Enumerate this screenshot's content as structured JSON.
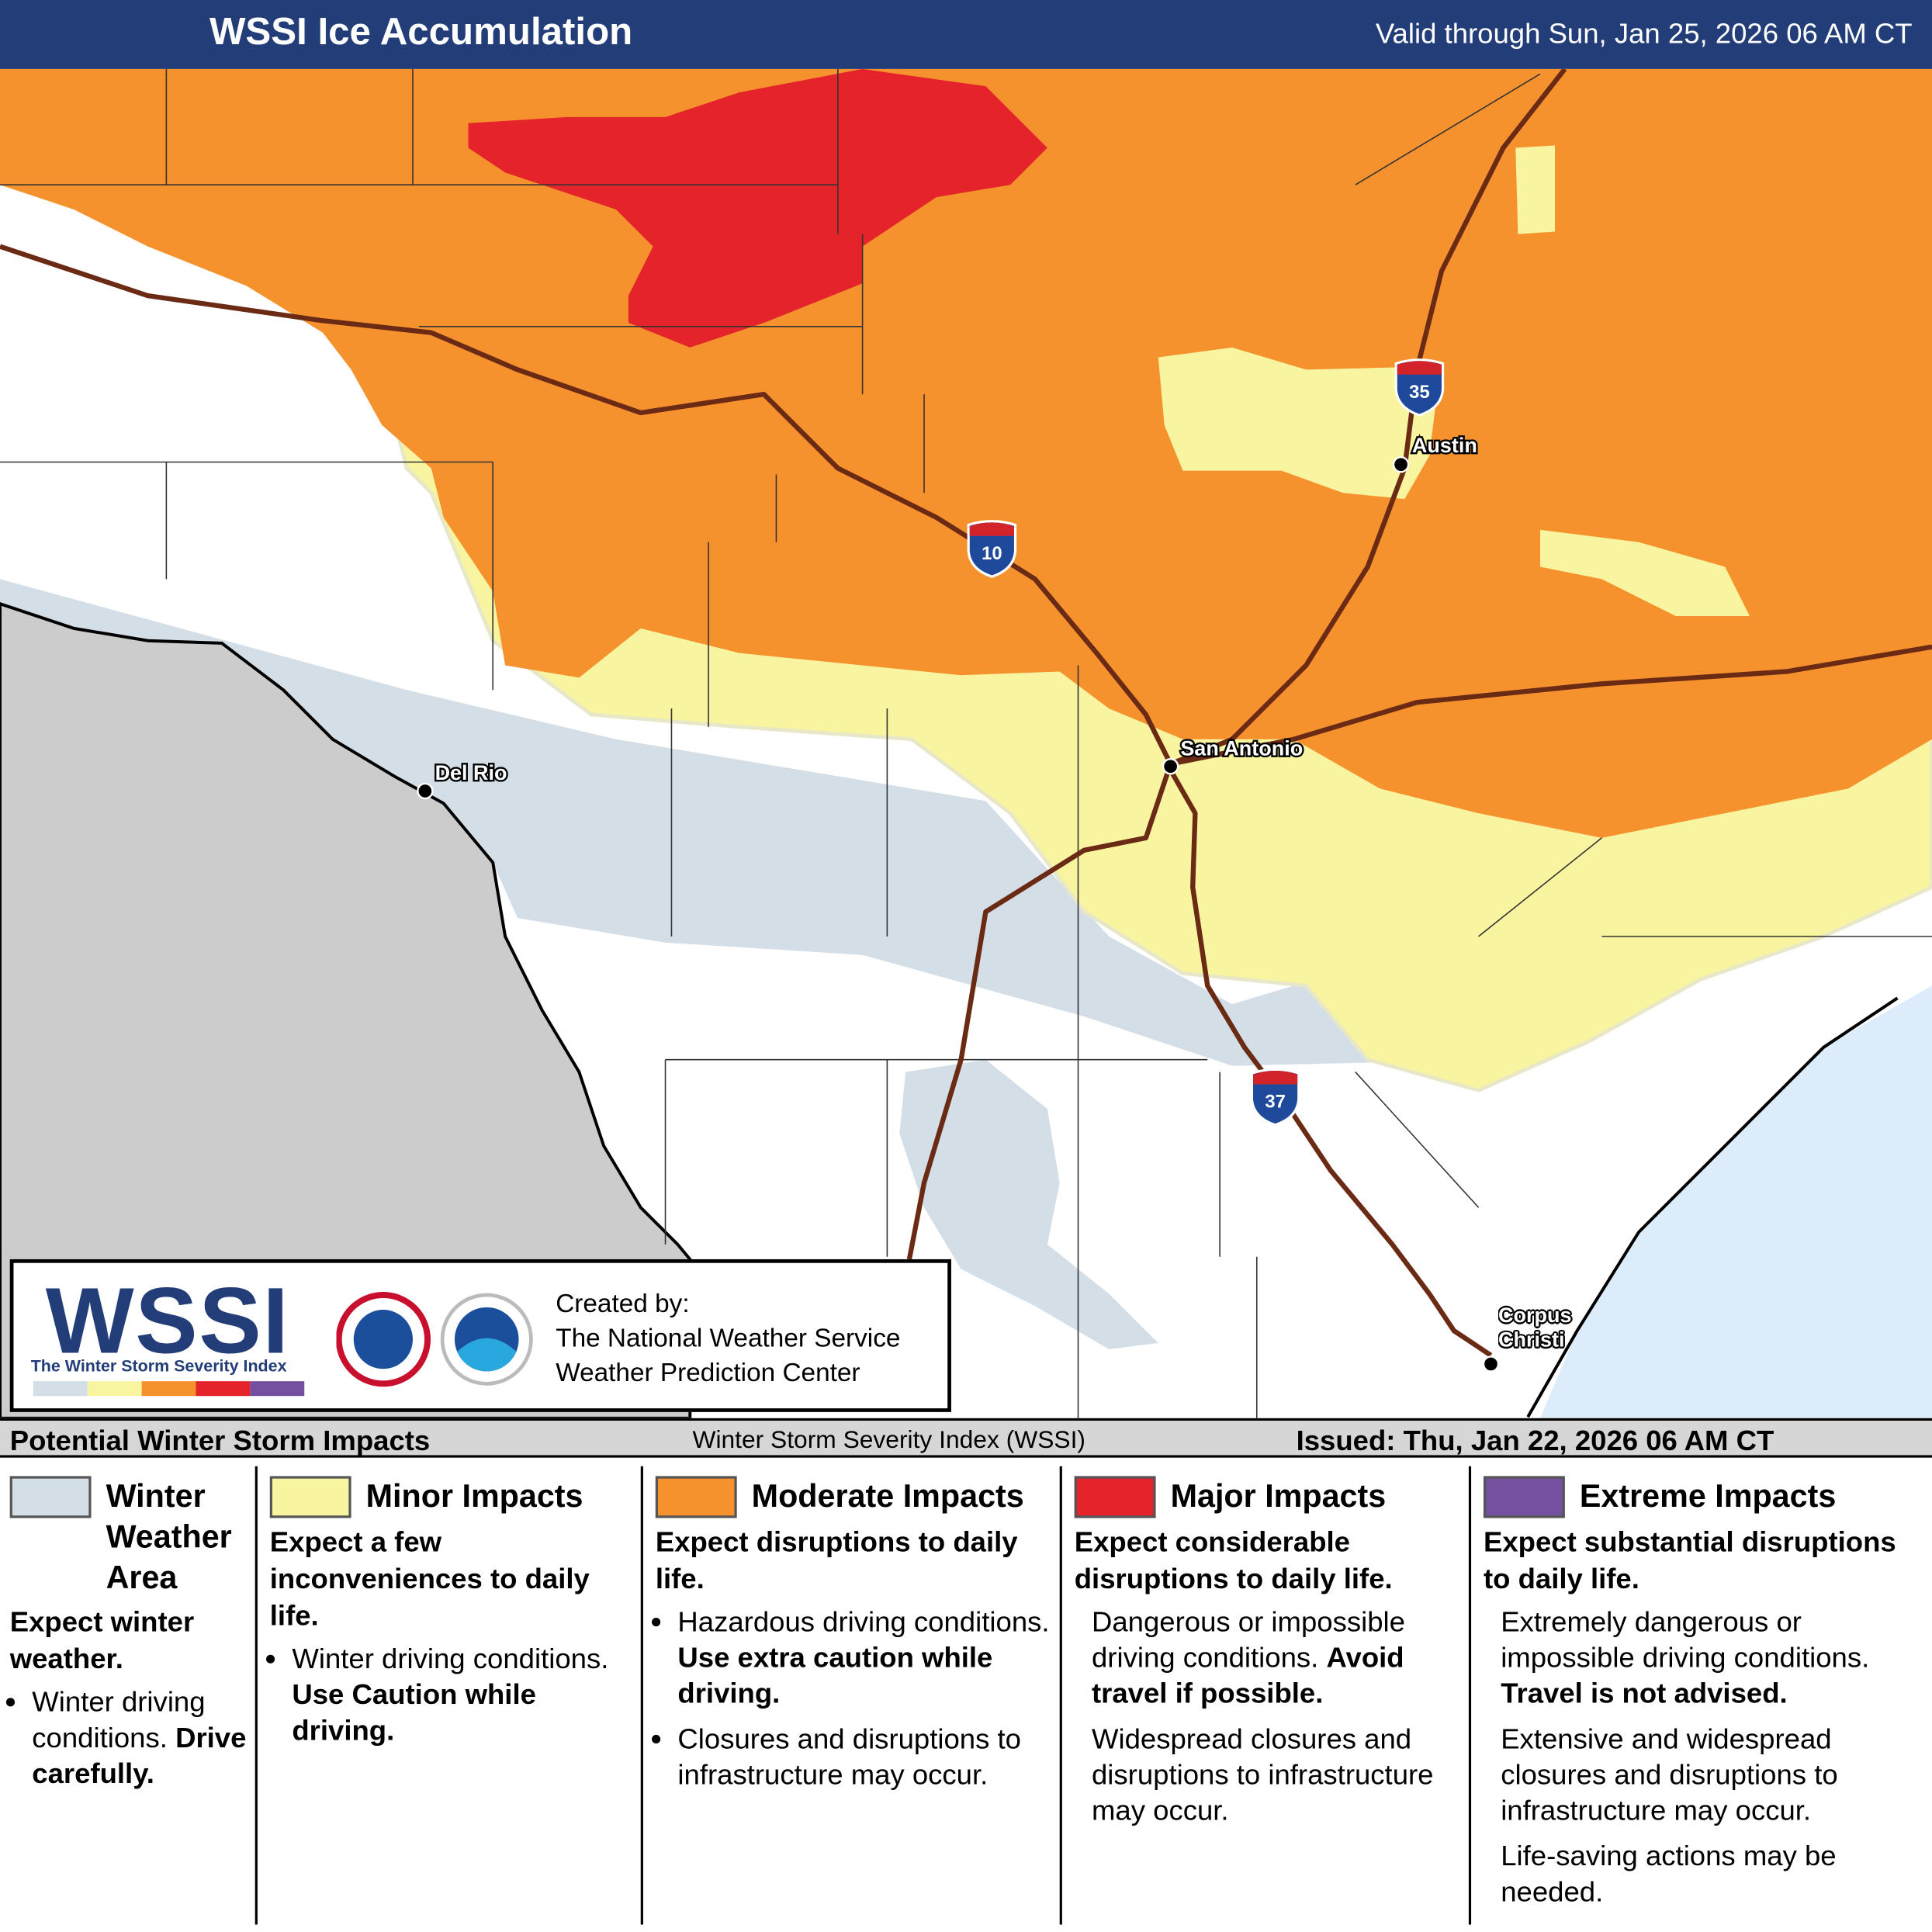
{
  "header": {
    "title": "WSSI Ice Accumulation",
    "valid": "Valid through Sun, Jan 25, 2026 06 AM CT"
  },
  "map": {
    "cities": [
      {
        "label": "Del Rio"
      },
      {
        "label": "San Antonio"
      },
      {
        "label": "Austin"
      },
      {
        "label": "Corpus Christi"
      }
    ],
    "interstates": [
      "10",
      "35",
      "37"
    ]
  },
  "credit": {
    "logo": "WSSI",
    "logo_subtitle": "The Winter Storm Severity Index",
    "lines": [
      "Created by:",
      "The National Weather Service",
      "Weather Prediction Center"
    ]
  },
  "legend_bar": {
    "left": "Potential Winter Storm Impacts",
    "center": "Winter Storm Severity Index (WSSI)",
    "right": "Issued: Thu, Jan 22, 2026 06 AM CT"
  },
  "categories": [
    {
      "name": "Winter Weather Area",
      "color": "#d3dee7",
      "summary": "Expect winter weather.",
      "bulleted": true,
      "items": [
        {
          "text": "Winter driving conditions.",
          "emphasis": "Drive carefully."
        }
      ]
    },
    {
      "name": "Minor Impacts",
      "color": "#f8f49f",
      "summary": "Expect a few inconveniences to daily life.",
      "bulleted": true,
      "items": [
        {
          "text": "Winter driving conditions.",
          "emphasis": "Use Caution while driving."
        }
      ]
    },
    {
      "name": "Moderate Impacts",
      "color": "#f6922e",
      "summary": "Expect disruptions to daily life.",
      "bulleted": true,
      "items": [
        {
          "text": "Hazardous driving conditions.",
          "emphasis": "Use extra caution while driving."
        },
        {
          "text": "Closures and disruptions to infrastructure may occur."
        }
      ]
    },
    {
      "name": "Major Impacts",
      "color": "#e4232b",
      "summary": "Expect considerable disruptions to daily life.",
      "bulleted": false,
      "items": [
        {
          "text": "Dangerous or impossible driving conditions.",
          "emphasis": "Avoid travel if possible."
        },
        {
          "text": "Widespread closures and disruptions to infrastructure may occur."
        }
      ]
    },
    {
      "name": "Extreme Impacts",
      "color": "#7650a0",
      "summary": "Expect substantial disruptions to daily life.",
      "bulleted": false,
      "items": [
        {
          "text": "Extremely dangerous or impossible driving conditions.",
          "emphasis": "Travel is not advised."
        },
        {
          "text": "Extensive and widespread closures and disruptions to infrastructure may occur."
        },
        {
          "text": "Life-saving actions may be needed."
        }
      ]
    }
  ]
}
